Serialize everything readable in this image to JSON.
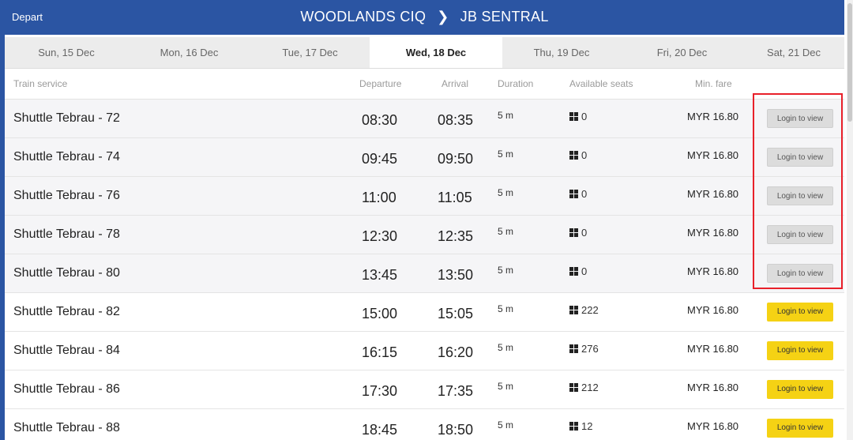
{
  "header": {
    "depart_label": "Depart",
    "origin": "WOODLANDS CIQ",
    "destination": "JB SENTRAL"
  },
  "tabs": [
    {
      "label": "Sun, 15 Dec",
      "active": false
    },
    {
      "label": "Mon, 16 Dec",
      "active": false
    },
    {
      "label": "Tue, 17 Dec",
      "active": false
    },
    {
      "label": "Wed, 18 Dec",
      "active": true
    },
    {
      "label": "Thu, 19 Dec",
      "active": false
    },
    {
      "label": "Fri, 20 Dec",
      "active": false
    },
    {
      "label": "Sat, 21 Dec",
      "active": false
    }
  ],
  "columns": {
    "service": "Train service",
    "departure": "Departure",
    "arrival": "Arrival",
    "duration": "Duration",
    "seats": "Available seats",
    "fare": "Min. fare"
  },
  "rows": [
    {
      "service": "Shuttle Tebrau - 72",
      "departure": "08:30",
      "arrival": "08:35",
      "duration": "5 m",
      "seats": "0",
      "fare": "MYR 16.80",
      "button": "Login to view",
      "available": false
    },
    {
      "service": "Shuttle Tebrau - 74",
      "departure": "09:45",
      "arrival": "09:50",
      "duration": "5 m",
      "seats": "0",
      "fare": "MYR 16.80",
      "button": "Login to view",
      "available": false
    },
    {
      "service": "Shuttle Tebrau - 76",
      "departure": "11:00",
      "arrival": "11:05",
      "duration": "5 m",
      "seats": "0",
      "fare": "MYR 16.80",
      "button": "Login to view",
      "available": false
    },
    {
      "service": "Shuttle Tebrau - 78",
      "departure": "12:30",
      "arrival": "12:35",
      "duration": "5 m",
      "seats": "0",
      "fare": "MYR 16.80",
      "button": "Login to view",
      "available": false
    },
    {
      "service": "Shuttle Tebrau - 80",
      "departure": "13:45",
      "arrival": "13:50",
      "duration": "5 m",
      "seats": "0",
      "fare": "MYR 16.80",
      "button": "Login to view",
      "available": false
    },
    {
      "service": "Shuttle Tebrau - 82",
      "departure": "15:00",
      "arrival": "15:05",
      "duration": "5 m",
      "seats": "222",
      "fare": "MYR 16.80",
      "button": "Login to view",
      "available": true
    },
    {
      "service": "Shuttle Tebrau - 84",
      "departure": "16:15",
      "arrival": "16:20",
      "duration": "5 m",
      "seats": "276",
      "fare": "MYR 16.80",
      "button": "Login to view",
      "available": true
    },
    {
      "service": "Shuttle Tebrau - 86",
      "departure": "17:30",
      "arrival": "17:35",
      "duration": "5 m",
      "seats": "212",
      "fare": "MYR 16.80",
      "button": "Login to view",
      "available": true
    },
    {
      "service": "Shuttle Tebrau - 88",
      "departure": "18:45",
      "arrival": "18:50",
      "duration": "5 m",
      "seats": "12",
      "fare": "MYR 16.80",
      "button": "Login to view",
      "available": true
    }
  ],
  "colors": {
    "header_blue": "#2b55a3",
    "button_available": "#f5d214",
    "button_disabled": "#dcdcdc",
    "highlight_red": "#e8202a"
  },
  "icons": {
    "seat": "seat-grid-icon",
    "route_arrow": "chevron-right-icon"
  }
}
